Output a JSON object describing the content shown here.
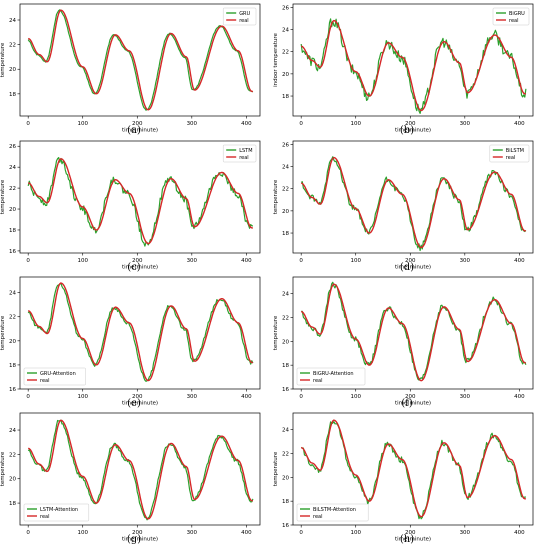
{
  "chart_data": [
    {
      "type": "line",
      "label": "(a)",
      "title": "",
      "xlabel": "time(minute)",
      "ylabel": "temperature",
      "x_ticks": [
        0,
        100,
        200,
        300,
        400
      ],
      "y_ticks": [
        18,
        20,
        22,
        24
      ],
      "xlim": [
        -15,
        425
      ],
      "ylim": [
        16.2,
        25.3
      ],
      "legend": "top-right",
      "series": [
        {
          "name": "GRU",
          "color": "#2ca02c"
        },
        {
          "name": "real",
          "color": "#d62728"
        }
      ],
      "real": [
        [
          0,
          22.5
        ],
        [
          20,
          21.2
        ],
        [
          35,
          20.6
        ],
        [
          60,
          24.8
        ],
        [
          100,
          20.2
        ],
        [
          125,
          18.0
        ],
        [
          160,
          22.8
        ],
        [
          185,
          21.5
        ],
        [
          220,
          16.7
        ],
        [
          262,
          22.9
        ],
        [
          290,
          21.0
        ],
        [
          305,
          18.3
        ],
        [
          355,
          23.5
        ],
        [
          385,
          21.5
        ],
        [
          410,
          18.2
        ]
      ],
      "noise": 0.05,
      "lead": -3
    },
    {
      "type": "line",
      "label": "(b)",
      "title": "",
      "xlabel": "time(minute)",
      "ylabel": "indoor temperature",
      "x_ticks": [
        0,
        100,
        200,
        300,
        400
      ],
      "y_ticks": [
        18,
        20,
        22,
        24,
        26
      ],
      "xlim": [
        -15,
        425
      ],
      "ylim": [
        16.2,
        26.3
      ],
      "legend": "top-right",
      "series": [
        {
          "name": "BiGRU",
          "color": "#2ca02c"
        },
        {
          "name": "real",
          "color": "#d62728"
        }
      ],
      "real": [
        [
          0,
          22.5
        ],
        [
          20,
          21.2
        ],
        [
          35,
          20.6
        ],
        [
          60,
          24.8
        ],
        [
          100,
          20.2
        ],
        [
          125,
          18.0
        ],
        [
          160,
          22.8
        ],
        [
          185,
          21.5
        ],
        [
          220,
          16.7
        ],
        [
          262,
          22.9
        ],
        [
          290,
          21.0
        ],
        [
          305,
          18.3
        ],
        [
          355,
          23.5
        ],
        [
          385,
          21.5
        ],
        [
          410,
          18.2
        ]
      ],
      "noise": 0.5,
      "lead": -2
    },
    {
      "type": "line",
      "label": "(c)",
      "title": "",
      "xlabel": "time(minute)",
      "ylabel": "temperature",
      "x_ticks": [
        0,
        100,
        200,
        300,
        400
      ],
      "y_ticks": [
        16,
        18,
        20,
        22,
        24,
        26
      ],
      "xlim": [
        -15,
        425
      ],
      "ylim": [
        15.8,
        26.5
      ],
      "legend": "top-right",
      "series": [
        {
          "name": "LSTM",
          "color": "#2ca02c"
        },
        {
          "name": "real",
          "color": "#d62728"
        }
      ],
      "real": [
        [
          0,
          22.5
        ],
        [
          20,
          21.2
        ],
        [
          35,
          20.6
        ],
        [
          60,
          24.8
        ],
        [
          100,
          20.2
        ],
        [
          125,
          18.0
        ],
        [
          160,
          22.8
        ],
        [
          185,
          21.5
        ],
        [
          220,
          16.7
        ],
        [
          262,
          22.9
        ],
        [
          290,
          21.0
        ],
        [
          305,
          18.3
        ],
        [
          355,
          23.5
        ],
        [
          385,
          21.5
        ],
        [
          410,
          18.2
        ]
      ],
      "noise": 0.35,
      "lead": -3
    },
    {
      "type": "line",
      "label": "(d)",
      "title": "",
      "xlabel": "time(minute)",
      "ylabel": "temperature",
      "x_ticks": [
        0,
        100,
        200,
        300,
        400
      ],
      "y_ticks": [
        18,
        20,
        22,
        24,
        26
      ],
      "xlim": [
        -15,
        425
      ],
      "ylim": [
        16.2,
        26.3
      ],
      "legend": "top-right",
      "series": [
        {
          "name": "BiLSTM",
          "color": "#2ca02c"
        },
        {
          "name": "real",
          "color": "#d62728"
        }
      ],
      "real": [
        [
          0,
          22.5
        ],
        [
          20,
          21.2
        ],
        [
          35,
          20.6
        ],
        [
          60,
          24.8
        ],
        [
          100,
          20.2
        ],
        [
          125,
          18.0
        ],
        [
          160,
          22.8
        ],
        [
          185,
          21.5
        ],
        [
          220,
          16.7
        ],
        [
          262,
          22.9
        ],
        [
          290,
          21.0
        ],
        [
          305,
          18.3
        ],
        [
          355,
          23.5
        ],
        [
          385,
          21.5
        ],
        [
          410,
          18.2
        ]
      ],
      "noise": 0.3,
      "lead": -2
    },
    {
      "type": "line",
      "label": "(e)",
      "title": "",
      "xlabel": "time(minute)",
      "ylabel": "temperature",
      "x_ticks": [
        0,
        100,
        200,
        300,
        400
      ],
      "y_ticks": [
        16,
        18,
        20,
        22,
        24
      ],
      "xlim": [
        -15,
        425
      ],
      "ylim": [
        16.0,
        25.3
      ],
      "legend": "bottom-left",
      "series": [
        {
          "name": "GRU-Attention",
          "color": "#2ca02c"
        },
        {
          "name": "real",
          "color": "#d62728"
        }
      ],
      "real": [
        [
          0,
          22.5
        ],
        [
          20,
          21.2
        ],
        [
          35,
          20.6
        ],
        [
          60,
          24.8
        ],
        [
          100,
          20.2
        ],
        [
          125,
          18.0
        ],
        [
          160,
          22.8
        ],
        [
          185,
          21.5
        ],
        [
          220,
          16.7
        ],
        [
          262,
          22.9
        ],
        [
          290,
          21.0
        ],
        [
          305,
          18.3
        ],
        [
          355,
          23.5
        ],
        [
          385,
          21.5
        ],
        [
          410,
          18.2
        ]
      ],
      "noise": 0.15,
      "lead": -3
    },
    {
      "type": "line",
      "label": "(f)",
      "title": "",
      "xlabel": "time(minute)",
      "ylabel": "temperature",
      "x_ticks": [
        0,
        100,
        200,
        300,
        400
      ],
      "y_ticks": [
        16,
        18,
        20,
        22,
        24
      ],
      "xlim": [
        -15,
        425
      ],
      "ylim": [
        16.0,
        25.4
      ],
      "legend": "bottom-left",
      "series": [
        {
          "name": "BiGRU-Attention",
          "color": "#2ca02c"
        },
        {
          "name": "real",
          "color": "#d62728"
        }
      ],
      "real": [
        [
          0,
          22.5
        ],
        [
          20,
          21.2
        ],
        [
          35,
          20.6
        ],
        [
          60,
          24.8
        ],
        [
          100,
          20.2
        ],
        [
          125,
          18.0
        ],
        [
          160,
          22.8
        ],
        [
          185,
          21.5
        ],
        [
          220,
          16.7
        ],
        [
          262,
          22.9
        ],
        [
          290,
          21.0
        ],
        [
          305,
          18.3
        ],
        [
          355,
          23.5
        ],
        [
          385,
          21.5
        ],
        [
          410,
          18.2
        ]
      ],
      "noise": 0.25,
      "lead": -2
    },
    {
      "type": "line",
      "label": "(g)",
      "title": "",
      "xlabel": "time(minute)",
      "ylabel": "temperature",
      "x_ticks": [
        0,
        100,
        200,
        300,
        400
      ],
      "y_ticks": [
        18,
        20,
        22,
        24
      ],
      "xlim": [
        -15,
        425
      ],
      "ylim": [
        16.2,
        25.4
      ],
      "legend": "bottom-left",
      "series": [
        {
          "name": "LSTM-Attention",
          "color": "#2ca02c"
        },
        {
          "name": "real",
          "color": "#d62728"
        }
      ],
      "real": [
        [
          0,
          22.5
        ],
        [
          20,
          21.2
        ],
        [
          35,
          20.6
        ],
        [
          60,
          24.8
        ],
        [
          100,
          20.2
        ],
        [
          125,
          18.0
        ],
        [
          160,
          22.8
        ],
        [
          185,
          21.5
        ],
        [
          220,
          16.7
        ],
        [
          262,
          22.9
        ],
        [
          290,
          21.0
        ],
        [
          305,
          18.3
        ],
        [
          355,
          23.5
        ],
        [
          385,
          21.5
        ],
        [
          410,
          18.2
        ]
      ],
      "noise": 0.15,
      "lead": -3
    },
    {
      "type": "line",
      "label": "(h)",
      "title": "",
      "xlabel": "time(minute)",
      "ylabel": "temperature",
      "x_ticks": [
        0,
        100,
        200,
        300,
        400
      ],
      "y_ticks": [
        16,
        18,
        20,
        22,
        24
      ],
      "xlim": [
        -15,
        425
      ],
      "ylim": [
        16.0,
        25.4
      ],
      "legend": "bottom-left",
      "series": [
        {
          "name": "BiLSTM-Attention",
          "color": "#2ca02c"
        },
        {
          "name": "real",
          "color": "#d62728"
        }
      ],
      "real": [
        [
          0,
          22.5
        ],
        [
          20,
          21.2
        ],
        [
          35,
          20.6
        ],
        [
          60,
          24.8
        ],
        [
          100,
          20.2
        ],
        [
          125,
          18.0
        ],
        [
          160,
          22.8
        ],
        [
          185,
          21.5
        ],
        [
          220,
          16.7
        ],
        [
          262,
          22.9
        ],
        [
          290,
          21.0
        ],
        [
          305,
          18.3
        ],
        [
          355,
          23.5
        ],
        [
          385,
          21.5
        ],
        [
          410,
          18.2
        ]
      ],
      "noise": 0.25,
      "lead": -2
    }
  ]
}
